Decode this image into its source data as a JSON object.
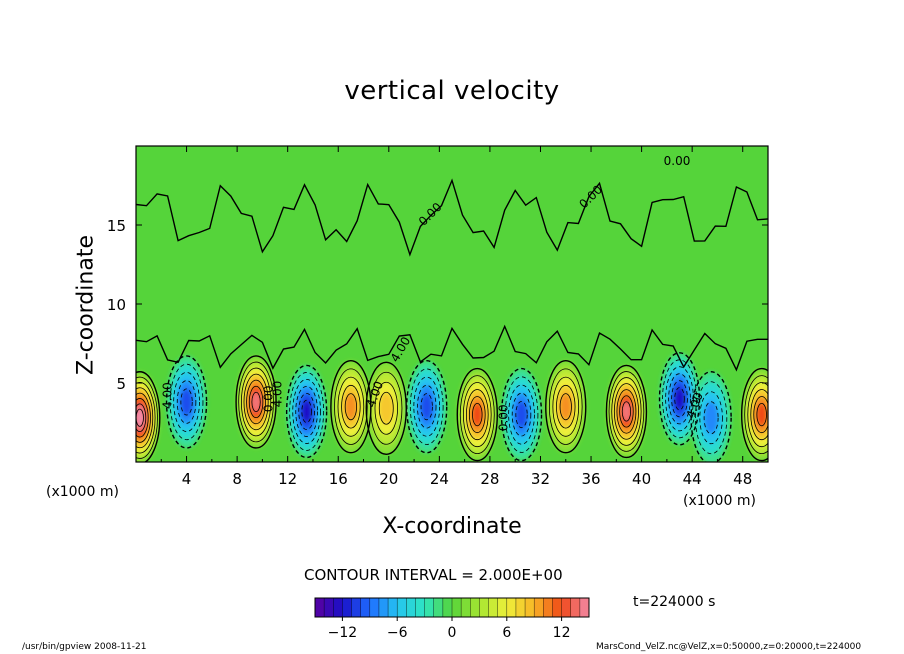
{
  "chart_data": {
    "type": "heatmap",
    "title": "vertical velocity",
    "xlabel": "X-coordinate",
    "ylabel": "Z-coordinate",
    "x_unit_label": "(x1000 m)",
    "xlim": [
      0,
      50
    ],
    "ylim": [
      0,
      20
    ],
    "x_ticks": [
      "4",
      "8",
      "12",
      "16",
      "20",
      "24",
      "28",
      "32",
      "36",
      "40",
      "44",
      "48"
    ],
    "y_ticks": [
      "5",
      "10",
      "15"
    ],
    "contour_labels": [
      "4.00",
      "0.00",
      "4.00",
      "4.00",
      "4.00",
      "0.00",
      "0.00",
      "0.00",
      "0.00",
      "4.00"
    ],
    "contour_interval_text": "CONTOUR INTERVAL = 2.000E+00",
    "colorbar": {
      "range": [
        -15,
        15
      ],
      "ticks": [
        "−12",
        "−6",
        "0",
        "6",
        "12"
      ]
    },
    "time_label": "t=224000 s",
    "cells": [
      {
        "x": 0.3,
        "z": 2.8,
        "value": 16
      },
      {
        "x": 4.0,
        "z": 3.8,
        "value": -10
      },
      {
        "x": 9.5,
        "z": 3.8,
        "value": 14
      },
      {
        "x": 13.5,
        "z": 3.2,
        "value": -12
      },
      {
        "x": 17.0,
        "z": 3.5,
        "value": 10
      },
      {
        "x": 19.8,
        "z": 3.4,
        "value": 8
      },
      {
        "x": 23.0,
        "z": 3.5,
        "value": -10
      },
      {
        "x": 27.0,
        "z": 3.0,
        "value": 12
      },
      {
        "x": 30.5,
        "z": 3.0,
        "value": -10
      },
      {
        "x": 34.0,
        "z": 3.5,
        "value": 10
      },
      {
        "x": 38.8,
        "z": 3.2,
        "value": 14
      },
      {
        "x": 43.0,
        "z": 4.0,
        "value": -12
      },
      {
        "x": 45.5,
        "z": 2.8,
        "value": -8
      },
      {
        "x": 49.5,
        "z": 3.0,
        "value": 12
      }
    ]
  },
  "footer": {
    "left": "/usr/bin/gpview  2008-11-21",
    "right": "MarsCond_VelZ.nc@VelZ,x=0:50000,z=0:20000,t=224000"
  }
}
